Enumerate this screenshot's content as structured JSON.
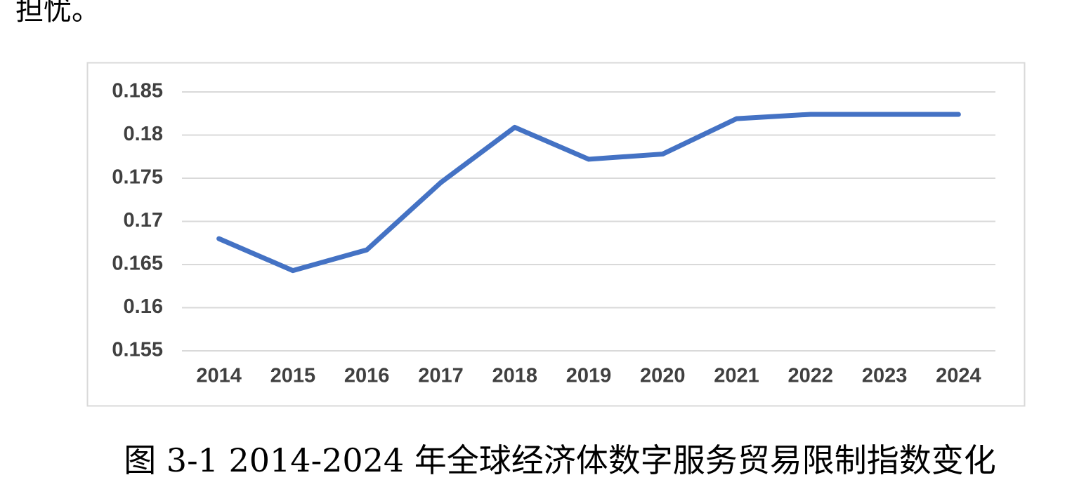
{
  "text_fragment": "担忧。",
  "chart_data": {
    "type": "line",
    "categories": [
      "2014",
      "2015",
      "2016",
      "2017",
      "2018",
      "2019",
      "2020",
      "2021",
      "2022",
      "2023",
      "2024"
    ],
    "series": [
      {
        "color": "#4472c4",
        "values": [
          0.168,
          0.1643,
          0.1667,
          0.1745,
          0.1809,
          0.1772,
          0.1778,
          0.1819,
          0.1824,
          0.1824,
          0.1824
        ]
      }
    ],
    "ylim": [
      0.155,
      0.185
    ],
    "yticks": [
      0.155,
      0.16,
      0.165,
      0.17,
      0.175,
      0.18,
      0.185
    ],
    "grid": true
  },
  "caption": "图 3-1 2014-2024 年全球经济体数字服务贸易限制指数变化"
}
